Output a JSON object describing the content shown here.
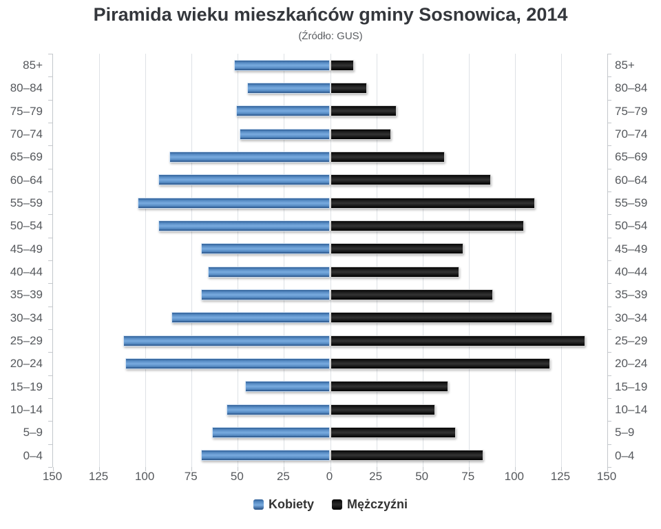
{
  "header": {
    "title": "Piramida wieku mieszkańców gminy Sosnowica, 2014",
    "subtitle": "(Źródło: GUS)"
  },
  "chart_data": {
    "type": "bar",
    "variant": "population-pyramid",
    "title": "Piramida wieku mieszkańców gminy Sosnowica, 2014",
    "subtitle": "(Źródło: GUS)",
    "categories": [
      "85+",
      "80–84",
      "75–79",
      "70–74",
      "65–69",
      "60–64",
      "55–59",
      "50–54",
      "45–49",
      "40–44",
      "35–39",
      "30–34",
      "25–29",
      "20–24",
      "15–19",
      "10–14",
      "5–9",
      "0–4"
    ],
    "series": [
      {
        "name": "Kobiety",
        "side": "left",
        "color": "#4f86c1",
        "values": [
          52,
          45,
          51,
          49,
          87,
          93,
          104,
          93,
          70,
          66,
          70,
          86,
          112,
          111,
          46,
          56,
          64,
          70
        ]
      },
      {
        "name": "Mężczyźni",
        "side": "right",
        "color": "#121212",
        "values": [
          13,
          20,
          36,
          33,
          62,
          87,
          111,
          105,
          72,
          70,
          88,
          120,
          138,
          119,
          64,
          57,
          68,
          83
        ]
      }
    ],
    "x_axis": {
      "max": 150,
      "tick_interval": 25,
      "tick_labels": [
        "150",
        "125",
        "100",
        "75",
        "50",
        "25",
        "0",
        "25",
        "50",
        "75",
        "100",
        "125",
        "150"
      ]
    },
    "grid": true,
    "legend_position": "bottom"
  },
  "colors": {
    "kobiety": "#4f86c1",
    "mezczyzni": "#121212",
    "grid": "#dde1e5",
    "axis": "#c3c7cb",
    "label": "#55585c",
    "title": "#34373c"
  }
}
